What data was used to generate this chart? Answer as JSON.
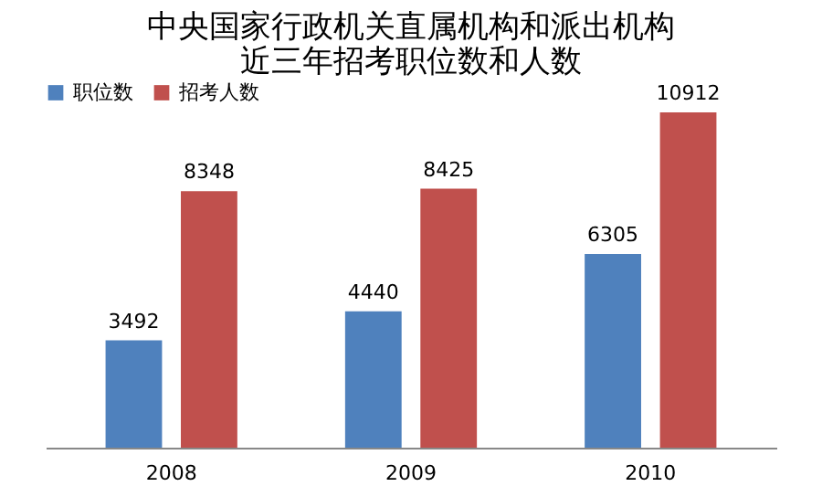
{
  "chart_data": {
    "type": "bar",
    "title": "中央国家行政机关直属机构和派出机构近三年招考职位数和人数",
    "categories": [
      "2008",
      "2009",
      "2010"
    ],
    "series": [
      {
        "name": "职位数",
        "color": "#4f81bd",
        "values": [
          3492,
          4440,
          6305
        ]
      },
      {
        "name": "招考人数",
        "color": "#c0504d",
        "values": [
          8348,
          8425,
          10912
        ]
      }
    ],
    "data_labels": true,
    "legend": "top",
    "grid": false,
    "tick_labels": "x"
  }
}
